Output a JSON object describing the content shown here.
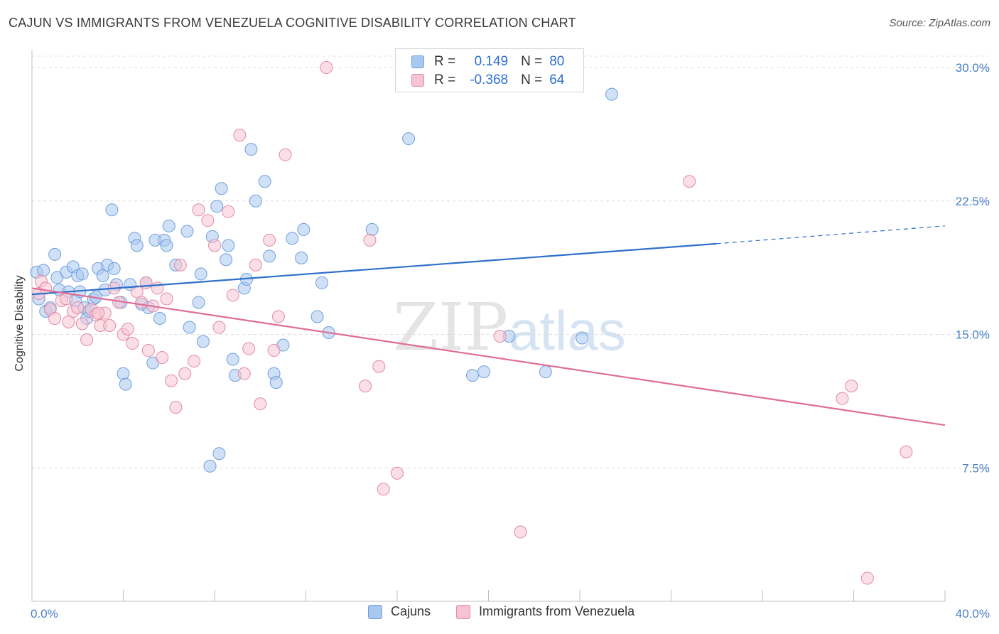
{
  "title": "CAJUN VS IMMIGRANTS FROM VENEZUELA COGNITIVE DISABILITY CORRELATION CHART",
  "source": "Source: ZipAtlas.com",
  "watermark": {
    "zip": "ZIP",
    "atlas": "atlas"
  },
  "legend_top": {
    "rows": [
      {
        "r_label": "R =",
        "r_value": "0.149",
        "n_label": "N =",
        "n_value": "80",
        "color": "#a9c8f0",
        "border": "#6f9fdc"
      },
      {
        "r_label": "R =",
        "r_value": "-0.368",
        "n_label": "N =",
        "n_value": "64",
        "color": "#f8c4d4",
        "border": "#e38aa6"
      }
    ]
  },
  "chart_data": {
    "type": "scatter",
    "title": "CAJUN VS IMMIGRANTS FROM VENEZUELA COGNITIVE DISABILITY CORRELATION CHART",
    "xlabel": "",
    "ylabel": "Cognitive Disability",
    "xlim": [
      0,
      40
    ],
    "ylim": [
      0,
      31
    ],
    "x_tick_labels": [
      "0.0%",
      "40.0%"
    ],
    "y_ticks": [
      7.5,
      15.0,
      22.5,
      30.0
    ],
    "y_tick_labels": [
      "7.5%",
      "15.0%",
      "22.5%",
      "30.0%"
    ],
    "grid": "horizontal dashed",
    "legend_position": "top-center",
    "series": [
      {
        "name": "Cajuns",
        "fill": "#a9c8f0",
        "stroke": "#6f9fdc",
        "line_color": "#2e6fcb",
        "trend": {
          "x_start": 0,
          "y_start": 17.25,
          "x_solid_end": 30.0,
          "y_solid_end": 20.1,
          "x_end": 40,
          "y_end": 21.1
        },
        "points": [
          [
            0.2,
            18.5
          ],
          [
            0.3,
            17.0
          ],
          [
            0.5,
            18.6
          ],
          [
            0.6,
            16.3
          ],
          [
            0.8,
            16.5
          ],
          [
            1.0,
            19.5
          ],
          [
            1.1,
            18.2
          ],
          [
            1.2,
            17.5
          ],
          [
            1.5,
            18.5
          ],
          [
            1.6,
            17.4
          ],
          [
            1.8,
            18.8
          ],
          [
            1.9,
            16.9
          ],
          [
            2.0,
            18.3
          ],
          [
            2.1,
            17.4
          ],
          [
            2.2,
            18.4
          ],
          [
            2.3,
            16.5
          ],
          [
            2.4,
            15.9
          ],
          [
            2.5,
            16.3
          ],
          [
            2.7,
            17.0
          ],
          [
            2.8,
            17.1
          ],
          [
            2.9,
            18.7
          ],
          [
            3.1,
            18.3
          ],
          [
            3.2,
            17.5
          ],
          [
            3.3,
            18.9
          ],
          [
            3.6,
            18.7
          ],
          [
            3.5,
            22.0
          ],
          [
            3.7,
            17.8
          ],
          [
            3.9,
            16.8
          ],
          [
            4.0,
            12.8
          ],
          [
            4.1,
            12.2
          ],
          [
            4.3,
            17.8
          ],
          [
            4.5,
            20.4
          ],
          [
            4.6,
            20.0
          ],
          [
            4.8,
            16.7
          ],
          [
            5.0,
            17.9
          ],
          [
            5.1,
            16.5
          ],
          [
            5.3,
            13.4
          ],
          [
            5.4,
            20.3
          ],
          [
            5.6,
            15.9
          ],
          [
            5.8,
            20.3
          ],
          [
            5.9,
            20.0
          ],
          [
            6.0,
            21.1
          ],
          [
            6.3,
            18.9
          ],
          [
            6.8,
            20.8
          ],
          [
            6.9,
            15.4
          ],
          [
            7.3,
            16.8
          ],
          [
            7.4,
            18.4
          ],
          [
            7.5,
            14.6
          ],
          [
            7.8,
            7.6
          ],
          [
            7.9,
            20.5
          ],
          [
            8.1,
            22.2
          ],
          [
            8.2,
            8.3
          ],
          [
            8.3,
            23.2
          ],
          [
            8.5,
            19.2
          ],
          [
            8.6,
            20.0
          ],
          [
            8.8,
            13.6
          ],
          [
            8.9,
            12.7
          ],
          [
            9.3,
            17.6
          ],
          [
            9.4,
            18.1
          ],
          [
            9.6,
            25.4
          ],
          [
            9.8,
            22.5
          ],
          [
            10.2,
            23.6
          ],
          [
            10.4,
            19.4
          ],
          [
            10.6,
            12.8
          ],
          [
            10.7,
            12.3
          ],
          [
            11.0,
            14.4
          ],
          [
            11.4,
            20.4
          ],
          [
            11.8,
            19.3
          ],
          [
            11.9,
            20.9
          ],
          [
            12.5,
            16.0
          ],
          [
            12.7,
            17.9
          ],
          [
            13.0,
            15.1
          ],
          [
            14.9,
            20.9
          ],
          [
            16.5,
            26.0
          ],
          [
            19.3,
            12.7
          ],
          [
            19.8,
            12.9
          ],
          [
            20.9,
            14.9
          ],
          [
            22.5,
            12.9
          ],
          [
            24.1,
            14.8
          ],
          [
            25.4,
            28.5
          ]
        ]
      },
      {
        "name": "Immigrants from Venezuela",
        "fill": "#f8c4d4",
        "stroke": "#e38aa6",
        "line_color": "#e06d97",
        "trend": {
          "x_start": 0,
          "y_start": 17.6,
          "x_solid_end": 40,
          "y_solid_end": 9.9,
          "x_end": 40,
          "y_end": 9.9
        },
        "points": [
          [
            0.3,
            17.3
          ],
          [
            0.4,
            18.0
          ],
          [
            0.6,
            17.6
          ],
          [
            0.8,
            16.4
          ],
          [
            1.0,
            15.9
          ],
          [
            1.3,
            16.9
          ],
          [
            1.5,
            17.0
          ],
          [
            1.6,
            15.7
          ],
          [
            1.8,
            16.3
          ],
          [
            2.0,
            16.5
          ],
          [
            2.2,
            15.6
          ],
          [
            2.4,
            14.7
          ],
          [
            2.6,
            16.4
          ],
          [
            2.8,
            16.1
          ],
          [
            3.0,
            15.5
          ],
          [
            3.2,
            16.2
          ],
          [
            3.4,
            15.5
          ],
          [
            3.6,
            17.6
          ],
          [
            3.8,
            16.8
          ],
          [
            4.0,
            15.0
          ],
          [
            4.2,
            15.3
          ],
          [
            4.4,
            14.5
          ],
          [
            4.6,
            17.4
          ],
          [
            4.8,
            16.8
          ],
          [
            5.0,
            17.9
          ],
          [
            5.1,
            14.1
          ],
          [
            5.3,
            16.6
          ],
          [
            5.5,
            17.6
          ],
          [
            5.7,
            13.7
          ],
          [
            5.9,
            17.0
          ],
          [
            6.1,
            12.4
          ],
          [
            6.3,
            10.9
          ],
          [
            6.5,
            18.9
          ],
          [
            6.7,
            12.8
          ],
          [
            7.1,
            13.5
          ],
          [
            7.3,
            22.0
          ],
          [
            7.7,
            21.4
          ],
          [
            8.0,
            20.0
          ],
          [
            8.2,
            15.4
          ],
          [
            8.6,
            21.9
          ],
          [
            8.8,
            17.2
          ],
          [
            9.1,
            26.2
          ],
          [
            9.3,
            12.8
          ],
          [
            9.5,
            14.2
          ],
          [
            9.8,
            18.9
          ],
          [
            10.0,
            11.1
          ],
          [
            10.4,
            20.3
          ],
          [
            10.6,
            14.1
          ],
          [
            10.8,
            16.0
          ],
          [
            11.1,
            25.1
          ],
          [
            12.9,
            30.0
          ],
          [
            14.6,
            12.1
          ],
          [
            14.8,
            20.3
          ],
          [
            15.2,
            13.2
          ],
          [
            15.4,
            6.3
          ],
          [
            16.0,
            7.2
          ],
          [
            20.5,
            14.9
          ],
          [
            21.4,
            3.9
          ],
          [
            28.8,
            23.6
          ],
          [
            35.5,
            11.4
          ],
          [
            35.9,
            12.1
          ],
          [
            36.6,
            1.3
          ],
          [
            38.3,
            8.4
          ],
          [
            2.9,
            16.2
          ]
        ]
      }
    ]
  }
}
